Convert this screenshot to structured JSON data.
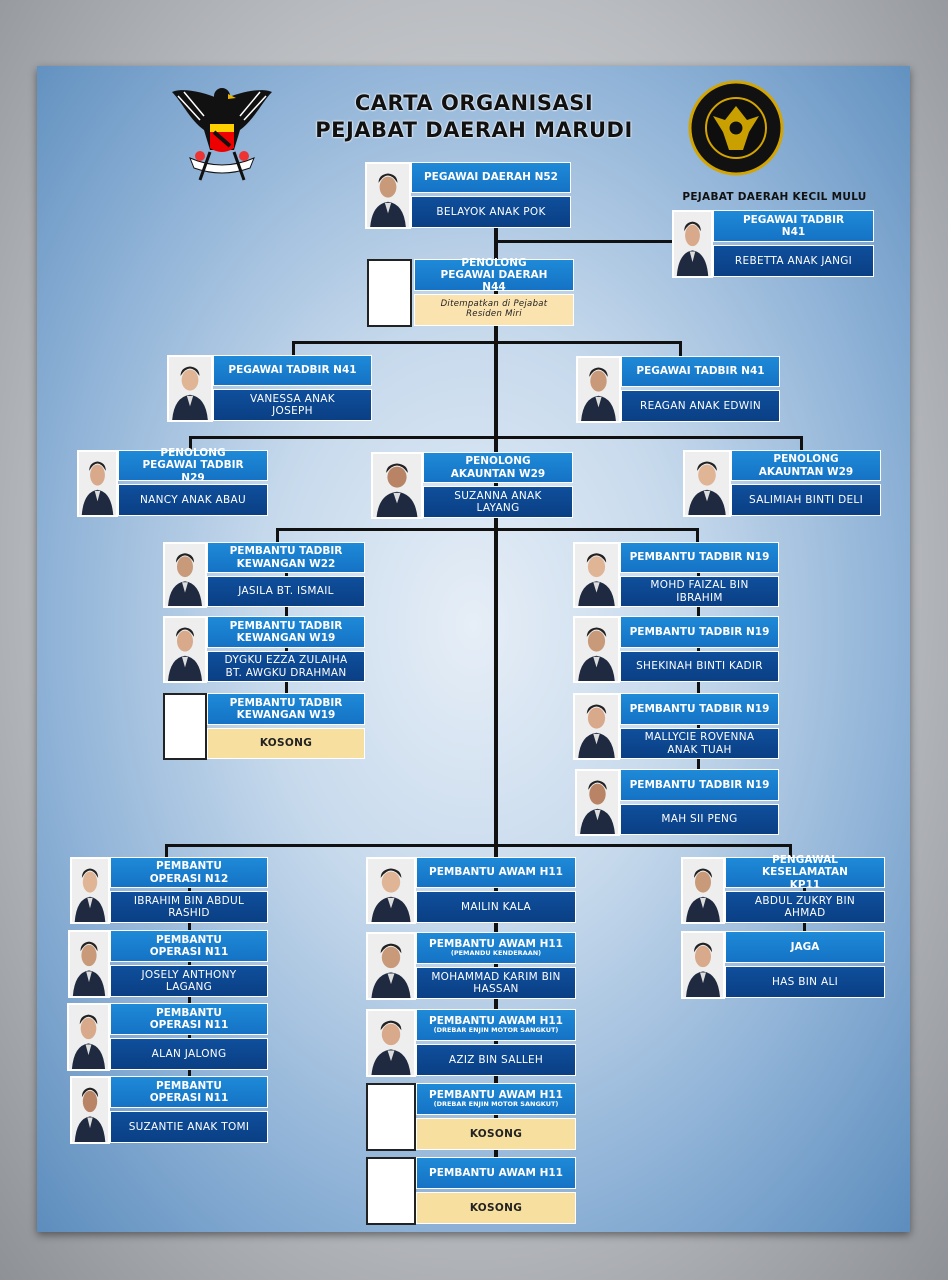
{
  "header": {
    "title_line1": "CARTA ORGANISASI",
    "title_line2": "PEJABAT DAERAH MARUDI",
    "sub_office": "PEJABAT DAERAH KECIL MULU",
    "left_logo": "sarawak-state-crest",
    "right_logo": "sarawak-civil-service-seal"
  },
  "colors": {
    "title_box": "#1a7fd0",
    "name_box": "#0d4a94",
    "vacant_box": "#f7dfa0",
    "lines": "#111111"
  },
  "cards": [
    {
      "title": "PEGAWAI DAERAH N52",
      "name": "BELAYOK ANAK POK",
      "photo": "person"
    },
    {
      "title": "PEGAWAI TADBIR N41",
      "name": "REBETTA ANAK JANGI",
      "photo": "person"
    },
    {
      "title": "PENOLONG PEGAWAI DAERAH N44",
      "name": "Ditempatkan di Pejabat Residen Miri",
      "photo": "empty",
      "style": "note"
    },
    {
      "title": "PEGAWAI TADBIR N41",
      "name": "VANESSA ANAK JOSEPH",
      "photo": "person"
    },
    {
      "title": "PEGAWAI TADBIR N41",
      "name": "REAGAN ANAK EDWIN",
      "photo": "person"
    },
    {
      "title": "PENOLONG PEGAWAI TADBIR N29",
      "name": "NANCY ANAK ABAU",
      "photo": "person"
    },
    {
      "title": "PENOLONG AKAUNTAN W29",
      "name": "SUZANNA ANAK LAYANG",
      "photo": "person"
    },
    {
      "title": "PENOLONG AKAUNTAN W29",
      "name": "SALIMIAH BINTI DELI",
      "photo": "person"
    },
    {
      "title": "PEMBANTU TADBIR KEWANGAN W22",
      "name": "JASILA BT. ISMAIL",
      "photo": "person"
    },
    {
      "title": "PEMBANTU TADBIR KEWANGAN W19",
      "name": "DYGKU EZZA ZULAIHA BT. AWGKU DRAHMAN",
      "photo": "person"
    },
    {
      "title": "PEMBANTU TADBIR KEWANGAN W19",
      "name": "KOSONG",
      "photo": "empty",
      "style": "vacant"
    },
    {
      "title": "PEMBANTU TADBIR N19",
      "name": "MOHD FAIZAL BIN IBRAHIM",
      "photo": "person"
    },
    {
      "title": "PEMBANTU TADBIR N19",
      "name": "SHEKINAH BINTI KADIR",
      "photo": "person"
    },
    {
      "title": "PEMBANTU TADBIR N19",
      "name": "MALLYCIE ROVENNA ANAK TUAH",
      "photo": "person"
    },
    {
      "title": "PEMBANTU TADBIR N19",
      "name": "MAH SII PENG",
      "photo": "person"
    },
    {
      "title": "PEMBANTU OPERASI N12",
      "name": "IBRAHIM BIN ABDUL RASHID",
      "photo": "person"
    },
    {
      "title": "PEMBANTU OPERASI N11",
      "name": "JOSELY ANTHONY LAGANG",
      "photo": "person"
    },
    {
      "title": "PEMBANTU OPERASI N11",
      "name": "ALAN JALONG",
      "photo": "person"
    },
    {
      "title": "PEMBANTU OPERASI N11",
      "name": "SUZANTIE ANAK TOMI",
      "photo": "person"
    },
    {
      "title": "PEMBANTU AWAM H11",
      "name": "MAILIN KALA",
      "photo": "person"
    },
    {
      "title": "PEMBANTU AWAM H11",
      "subtitle": "(PEMANDU KENDERAAN)",
      "name": "MOHAMMAD KARIM BIN HASSAN",
      "photo": "person"
    },
    {
      "title": "PEMBANTU AWAM H11",
      "subtitle": "(DREBAR ENJIN MOTOR SANGKUT)",
      "name": "AZIZ BIN SALLEH",
      "photo": "person"
    },
    {
      "title": "PEMBANTU AWAM H11",
      "subtitle": "(DREBAR ENJIN MOTOR SANGKUT)",
      "name": "KOSONG",
      "photo": "empty",
      "style": "vacant"
    },
    {
      "title": "PEMBANTU AWAM H11",
      "name": "KOSONG",
      "photo": "empty",
      "style": "vacant"
    },
    {
      "title": "PENGAWAL KESELAMATAN KP11",
      "name": "ABDUL ZUKRY BIN AHMAD",
      "photo": "person"
    },
    {
      "title": "JAGA",
      "name": "HAS BIN ALI",
      "photo": "person"
    }
  ]
}
